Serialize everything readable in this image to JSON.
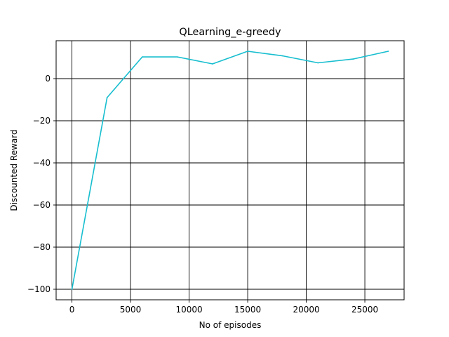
{
  "chart_data": {
    "type": "line",
    "title": "QLearning_e-greedy",
    "xlabel": "No of episodes",
    "ylabel": "Discounted Reward",
    "xlim": [
      -1350,
      28350
    ],
    "ylim": [
      -105,
      18
    ],
    "grid": true,
    "x_ticks": [
      0,
      5000,
      10000,
      15000,
      20000,
      25000
    ],
    "x_tick_labels": [
      "0",
      "5000",
      "10000",
      "15000",
      "20000",
      "25000"
    ],
    "y_ticks": [
      -100,
      -80,
      -60,
      -40,
      -20,
      0
    ],
    "y_tick_labels": [
      "−100",
      "−80",
      "−60",
      "−40",
      "−20",
      "0"
    ],
    "series": [
      {
        "color": "#17becf",
        "x": [
          0,
          3000,
          6000,
          9000,
          12000,
          15000,
          18000,
          21000,
          24000,
          27000
        ],
        "y": [
          -100,
          -9,
          10.3,
          10.3,
          7,
          13,
          10.8,
          7.5,
          9.3,
          13
        ]
      }
    ]
  }
}
